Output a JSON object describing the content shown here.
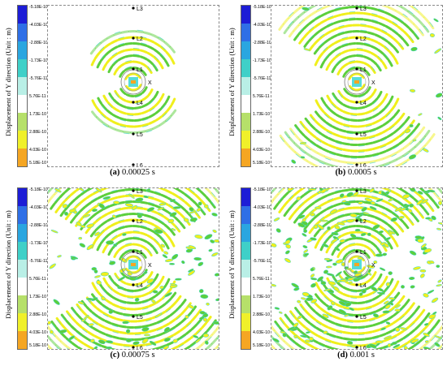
{
  "figure": {
    "y_axis_label": "Displacement of Y direction (Unit : m)",
    "colorbar": {
      "labels": [
        "-5.18E-10",
        "-4.03E-10",
        "-2.88E-10",
        "-1.73E-10",
        "-5.76E-11",
        "5.76E-11",
        "1.73E-10",
        "2.88E-10",
        "4.03E-10",
        "5.18E-10"
      ],
      "colors": [
        "#1d1dd6",
        "#2f6fe6",
        "#2aa6e0",
        "#3fd0c8",
        "#b9efe6",
        "#ffffff",
        "#b6e06a",
        "#f0f02a",
        "#f5a623",
        "#e8281e"
      ]
    },
    "points": [
      "L3",
      "L2",
      "L1",
      "L4",
      "L5",
      "L6"
    ],
    "axis_marker": "X",
    "field_colors": {
      "green": "#5ccf3c",
      "yellow": "#f0ef1c",
      "cyan": "#3ad6d0"
    },
    "panels": [
      {
        "letter": "(a)",
        "time": "0.00025 s",
        "radius": 0.45
      },
      {
        "letter": "(b)",
        "time": "0.0005 s",
        "radius": 0.78
      },
      {
        "letter": "(c)",
        "time": "0.00075 s",
        "radius": 1.0
      },
      {
        "letter": "(d)",
        "time": "0.001 s",
        "radius": 1.0
      }
    ]
  }
}
